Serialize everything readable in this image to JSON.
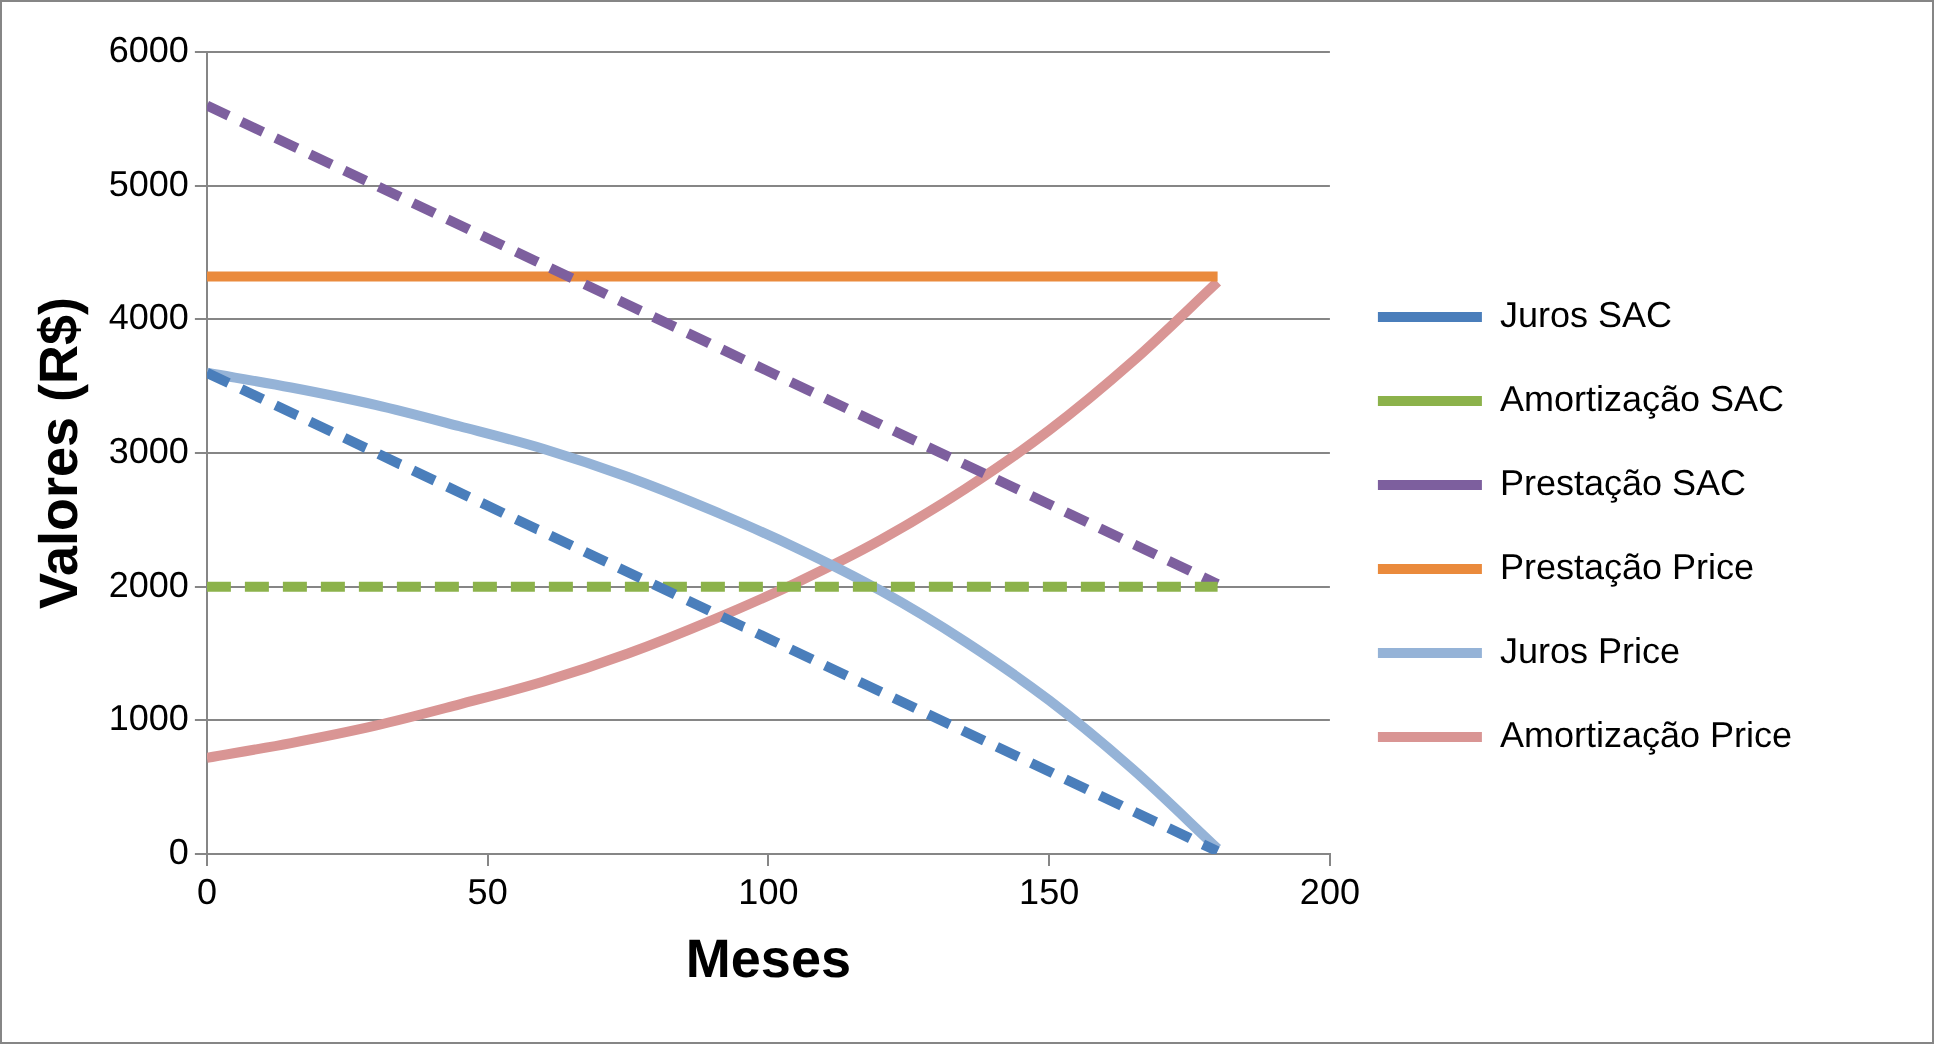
{
  "chart_data": {
    "type": "line",
    "xlabel": "Meses",
    "ylabel": "Valores (R$)",
    "xlim": [
      0,
      200
    ],
    "xticks": [
      0,
      50,
      100,
      150,
      200
    ],
    "ylim": [
      0,
      6000
    ],
    "yticks": [
      0,
      1000,
      2000,
      3000,
      4000,
      5000,
      6000
    ],
    "grid": "y",
    "legend": "right",
    "marker": "none",
    "series": [
      {
        "name": "Juros SAC",
        "color": "#4a7ebb",
        "line_style": "dashed",
        "x": [
          0,
          180
        ],
        "values": [
          3600,
          20
        ]
      },
      {
        "name": "Amortização SAC",
        "color": "#8cb24b",
        "line_style": "dashed",
        "x": [
          0,
          180
        ],
        "values": [
          2000,
          2000
        ]
      },
      {
        "name": "Prestação SAC",
        "color": "#7d5f9e",
        "line_style": "dashed",
        "x": [
          0,
          180
        ],
        "values": [
          5600,
          2020
        ]
      },
      {
        "name": "Prestação Price",
        "color": "#ea8a3c",
        "line_style": "solid",
        "x": [
          0,
          180
        ],
        "values": [
          4320,
          4320
        ]
      },
      {
        "name": "Juros Price",
        "color": "#95b3d7",
        "line_style": "solid",
        "x": [
          0,
          15,
          30,
          45,
          60,
          75,
          90,
          105,
          120,
          135,
          150,
          165,
          180
        ],
        "values": [
          3600,
          3490,
          3360,
          3200,
          3030,
          2820,
          2570,
          2290,
          1970,
          1590,
          1150,
          630,
          40
        ]
      },
      {
        "name": "Amortização Price",
        "color": "#d99594",
        "line_style": "solid",
        "x": [
          0,
          15,
          30,
          45,
          60,
          75,
          90,
          105,
          120,
          135,
          150,
          165,
          180
        ],
        "values": [
          720,
          830,
          960,
          1120,
          1290,
          1500,
          1750,
          2030,
          2350,
          2730,
          3170,
          3690,
          4280
        ]
      }
    ]
  }
}
